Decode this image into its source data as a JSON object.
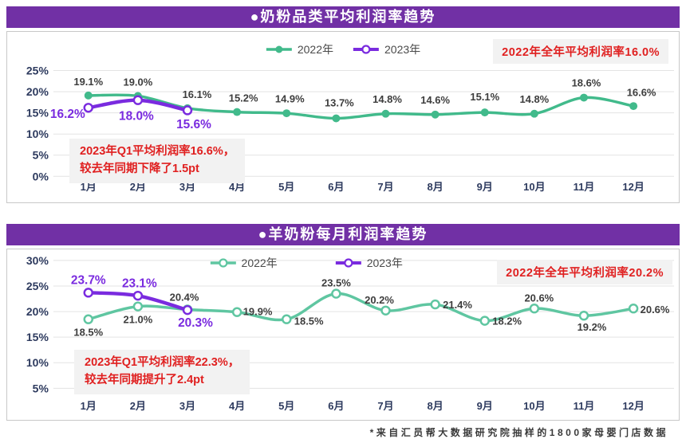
{
  "colors": {
    "banner_purple": "#7130A5",
    "note_red": "#E02020",
    "note_bg": "#F2F2F2",
    "axis_text": "#2D3A5E",
    "data_label": "#3D3D3D"
  },
  "footer": "*来自汇员帮大数据研究院抽样的1800家母婴门店数据",
  "chart_data": [
    {
      "type": "line",
      "title": "●奶粉品类平均利润率趋势",
      "categories": [
        "1月",
        "2月",
        "3月",
        "4月",
        "5月",
        "6月",
        "7月",
        "8月",
        "9月",
        "10月",
        "11月",
        "12月"
      ],
      "series": [
        {
          "name": "2022年",
          "color": "#41BA8B",
          "marker": "filled",
          "values": [
            19.1,
            19.0,
            16.1,
            15.2,
            14.9,
            13.7,
            14.8,
            14.6,
            15.1,
            14.8,
            18.6,
            16.6
          ]
        },
        {
          "name": "2023年",
          "color": "#7A2BDF",
          "marker": "open",
          "values": [
            16.2,
            18.0,
            15.6
          ]
        }
      ],
      "ylim": [
        0,
        25
      ],
      "ytick_step": 5,
      "grid": true,
      "legend_position": "top-center",
      "annotations": [
        {
          "position": "top-right",
          "text": "2022年全年平均利润率16.0%"
        },
        {
          "position": "bottom-left",
          "lines": [
            "2023年Q1平均利润率16.6%，",
            "较去年同期下降了1.5pt"
          ]
        }
      ]
    },
    {
      "type": "line",
      "title": "●羊奶粉每月利润率趋势",
      "categories": [
        "1月",
        "2月",
        "3月",
        "4月",
        "5月",
        "6月",
        "7月",
        "8月",
        "9月",
        "10月",
        "11月",
        "12月"
      ],
      "series": [
        {
          "name": "2022年",
          "color": "#5FC6A1",
          "marker": "open",
          "values": [
            18.5,
            21.0,
            20.4,
            19.9,
            18.5,
            23.5,
            20.2,
            21.4,
            18.2,
            20.6,
            19.2,
            20.6
          ]
        },
        {
          "name": "2023年",
          "color": "#7A2BDF",
          "marker": "open",
          "values": [
            23.7,
            23.1,
            20.3
          ]
        }
      ],
      "ylim": [
        5,
        30
      ],
      "ytick_step": 5,
      "grid": true,
      "legend_position": "top-center",
      "annotations": [
        {
          "position": "top-right",
          "text": "2022年全年平均利润率20.2%"
        },
        {
          "position": "bottom-left",
          "lines": [
            "2023年Q1平均利润率22.3%，",
            "较去年同期提升了2.4pt"
          ]
        }
      ]
    }
  ]
}
